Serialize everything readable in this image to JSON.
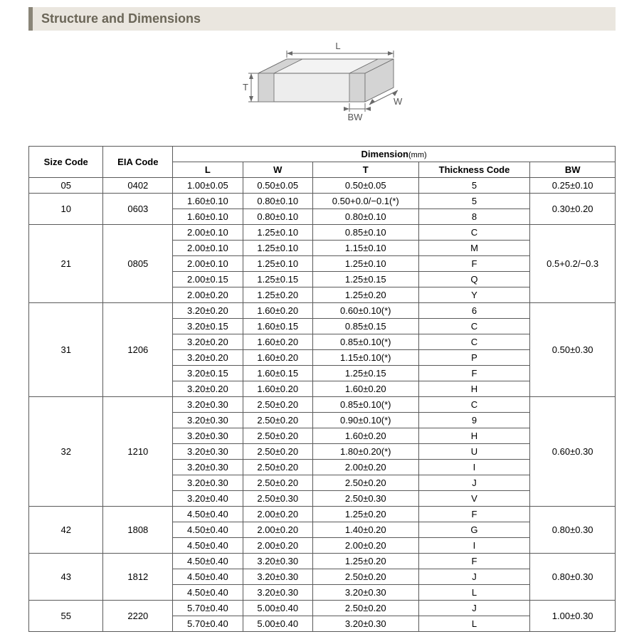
{
  "section_title": "Structure and Dimensions",
  "diagram": {
    "labels": {
      "L": "L",
      "W": "W",
      "T": "T",
      "BW": "BW"
    },
    "stroke": "#6a6a6a",
    "fill_top": "#f3f3f3",
    "fill_side": "#e1e1e1",
    "fill_front": "#ededed",
    "band_fill": "#d4d4d4",
    "label_color": "#555555",
    "label_fontsize": 13
  },
  "table": {
    "headers": {
      "size_code": "Size Code",
      "eia_code": "EIA Code",
      "dimension_group": "Dimension",
      "dimension_unit": "(mm)",
      "L": "L",
      "W": "W",
      "T": "T",
      "thickness_code": "Thickness  Code",
      "BW": "BW"
    },
    "groups": [
      {
        "size_code": "05",
        "eia_code": "0402",
        "bw": "0.25±0.10",
        "rows": [
          {
            "L": "1.00±0.05",
            "W": "0.50±0.05",
            "T": "0.50±0.05",
            "tc": "5"
          }
        ]
      },
      {
        "size_code": "10",
        "eia_code": "0603",
        "bw": "0.30±0.20",
        "rows": [
          {
            "L": "1.60±0.10",
            "W": "0.80±0.10",
            "T": "0.50+0.0/−0.1(*)",
            "tc": "5"
          },
          {
            "L": "1.60±0.10",
            "W": "0.80±0.10",
            "T": "0.80±0.10",
            "tc": "8"
          }
        ]
      },
      {
        "size_code": "21",
        "eia_code": "0805",
        "bw": "0.5+0.2/−0.3",
        "rows": [
          {
            "L": "2.00±0.10",
            "W": "1.25±0.10",
            "T": "0.85±0.10",
            "tc": "C"
          },
          {
            "L": "2.00±0.10",
            "W": "1.25±0.10",
            "T": "1.15±0.10",
            "tc": "M"
          },
          {
            "L": "2.00±0.10",
            "W": "1.25±0.10",
            "T": "1.25±0.10",
            "tc": "F"
          },
          {
            "L": "2.00±0.15",
            "W": "1.25±0.15",
            "T": "1.25±0.15",
            "tc": "Q"
          },
          {
            "L": "2.00±0.20",
            "W": "1.25±0.20",
            "T": "1.25±0.20",
            "tc": "Y"
          }
        ]
      },
      {
        "size_code": "31",
        "eia_code": "1206",
        "bw": "0.50±0.30",
        "rows": [
          {
            "L": "3.20±0.20",
            "W": "1.60±0.20",
            "T": "0.60±0.10(*)",
            "tc": "6"
          },
          {
            "L": "3.20±0.15",
            "W": "1.60±0.15",
            "T": "0.85±0.15",
            "tc": "C"
          },
          {
            "L": "3.20±0.20",
            "W": "1.60±0.20",
            "T": "0.85±0.10(*)",
            "tc": "C"
          },
          {
            "L": "3.20±0.20",
            "W": "1.60±0.20",
            "T": "1.15±0.10(*)",
            "tc": "P"
          },
          {
            "L": "3.20±0.15",
            "W": "1.60±0.15",
            "T": "1.25±0.15",
            "tc": "F"
          },
          {
            "L": "3.20±0.20",
            "W": "1.60±0.20",
            "T": "1.60±0.20",
            "tc": "H"
          }
        ]
      },
      {
        "size_code": "32",
        "eia_code": "1210",
        "bw": "0.60±0.30",
        "rows": [
          {
            "L": "3.20±0.30",
            "W": "2.50±0.20",
            "T": "0.85±0.10(*)",
            "tc": "C"
          },
          {
            "L": "3.20±0.30",
            "W": "2.50±0.20",
            "T": "0.90±0.10(*)",
            "tc": "9"
          },
          {
            "L": "3.20±0.30",
            "W": "2.50±0.20",
            "T": "1.60±0.20",
            "tc": "H"
          },
          {
            "L": "3.20±0.30",
            "W": "2.50±0.20",
            "T": "1.80±0.20(*)",
            "tc": "U"
          },
          {
            "L": "3.20±0.30",
            "W": "2.50±0.20",
            "T": "2.00±0.20",
            "tc": "I"
          },
          {
            "L": "3.20±0.30",
            "W": "2.50±0.20",
            "T": "2.50±0.20",
            "tc": "J"
          },
          {
            "L": "3.20±0.40",
            "W": "2.50±0.30",
            "T": "2.50±0.30",
            "tc": "V"
          }
        ]
      },
      {
        "size_code": "42",
        "eia_code": "1808",
        "bw": "0.80±0.30",
        "rows": [
          {
            "L": "4.50±0.40",
            "W": "2.00±0.20",
            "T": "1.25±0.20",
            "tc": "F"
          },
          {
            "L": "4.50±0.40",
            "W": "2.00±0.20",
            "T": "1.40±0.20",
            "tc": "G"
          },
          {
            "L": "4.50±0.40",
            "W": "2.00±0.20",
            "T": "2.00±0.20",
            "tc": "I"
          }
        ]
      },
      {
        "size_code": "43",
        "eia_code": "1812",
        "bw": "0.80±0.30",
        "rows": [
          {
            "L": "4.50±0.40",
            "W": "3.20±0.30",
            "T": "1.25±0.20",
            "tc": "F"
          },
          {
            "L": "4.50±0.40",
            "W": "3.20±0.30",
            "T": "2.50±0.20",
            "tc": "J"
          },
          {
            "L": "4.50±0.40",
            "W": "3.20±0.30",
            "T": "3.20±0.30",
            "tc": "L"
          }
        ]
      },
      {
        "size_code": "55",
        "eia_code": "2220",
        "bw": "1.00±0.30",
        "rows": [
          {
            "L": "5.70±0.40",
            "W": "5.00±0.40",
            "T": "2.50±0.20",
            "tc": "J"
          },
          {
            "L": "5.70±0.40",
            "W": "5.00±0.40",
            "T": "3.20±0.30",
            "tc": "L"
          }
        ]
      }
    ]
  },
  "colors": {
    "header_bg": "#eae6df",
    "header_accent": "#8a8578",
    "header_text": "#6b6658",
    "border": "#5a5a5a"
  }
}
